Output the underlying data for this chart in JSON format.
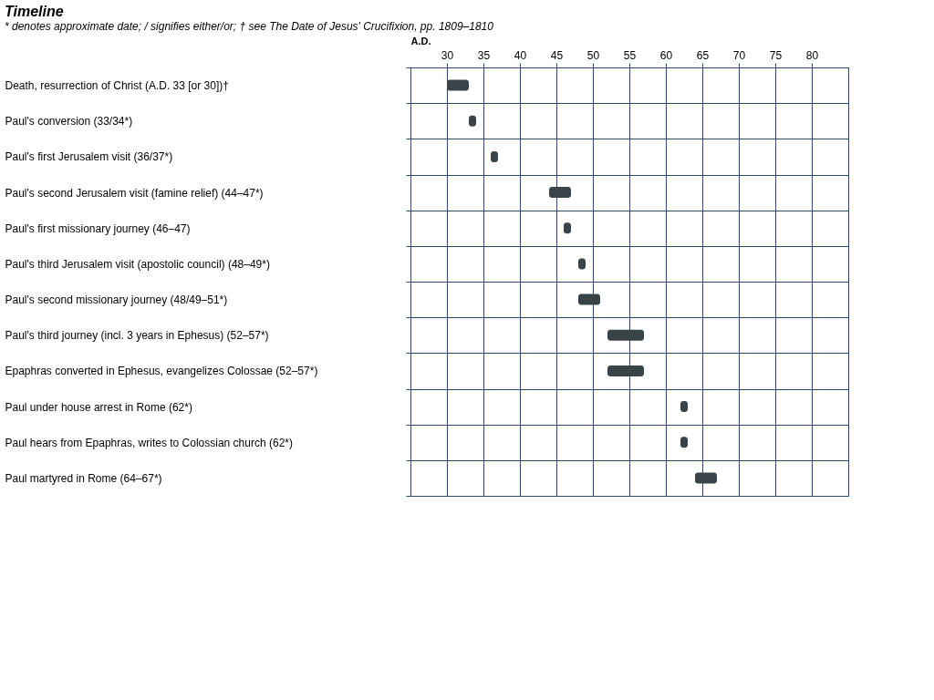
{
  "chart_data": {
    "type": "bar",
    "orientation": "horizontal",
    "title": "Timeline",
    "xlabel": "A.D.",
    "categories": [
      "Death, resurrection of Christ (A.D. 33 [or 30])†",
      "Paul's conversion (33/34*)",
      "Paul's first Jerusalem visit (36/37*)",
      "Paul's second Jerusalem visit (famine relief) (44–47*)",
      "Paul's first missionary journey (46–47)",
      "Paul's third Jerusalem visit (apostolic council) (48–49*)",
      "Paul's second missionary journey (48/49–51*)",
      "Paul's third journey (incl. 3 years in Ephesus) (52–57*)",
      "Epaphras converted in Ephesus, evangelizes Colossae (52–57*)",
      "Paul under house arrest in Rome (62*)",
      "Paul hears from Epaphras, writes to Colossian church (62*)",
      "Paul martyred in Rome (64–67*)"
    ],
    "base": [
      30,
      33,
      36,
      44,
      46,
      48,
      48,
      52,
      52,
      62,
      62,
      64
    ],
    "values": [
      3,
      1,
      1,
      3,
      1,
      1,
      3,
      5,
      5,
      1,
      1,
      3
    ],
    "color": "#3a4448",
    "xlim": [
      25,
      85
    ],
    "xticks": [
      30,
      35,
      40,
      45,
      50,
      55,
      60,
      65,
      70,
      75,
      80
    ],
    "grid": true,
    "annotations": [
      "* denotes approximate date; / signifies either/or; † see The Date of Jesus' Crucifixion, pp. 1809–1810"
    ]
  }
}
